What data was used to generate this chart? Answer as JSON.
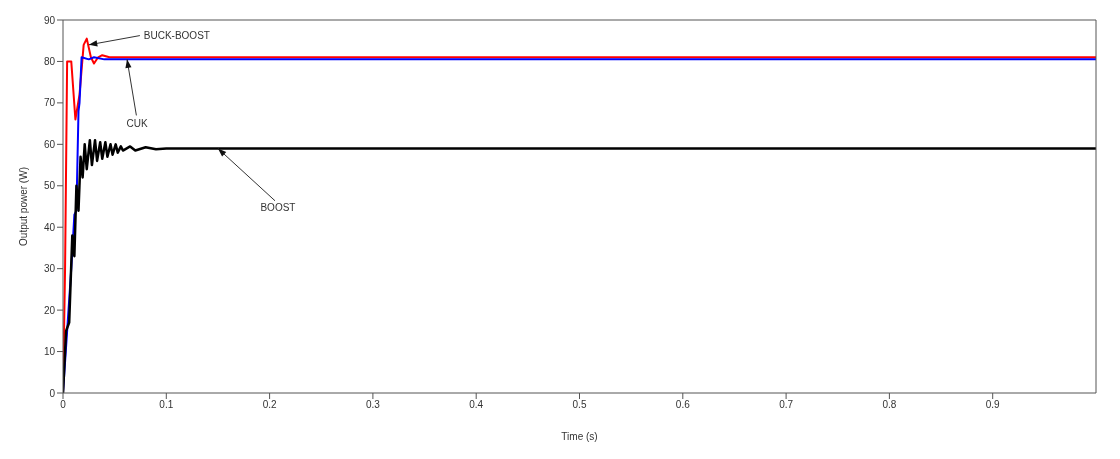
{
  "chart_data": {
    "type": "line",
    "xlabel": "Time (s)",
    "ylabel": "Output power (W)",
    "xlim": [
      0,
      1
    ],
    "xticks": [
      0,
      0.1,
      0.2,
      0.3,
      0.4,
      0.5,
      0.6,
      0.7,
      0.8,
      0.9
    ],
    "ylim": [
      0,
      90
    ],
    "yticks": [
      0,
      10,
      20,
      30,
      40,
      50,
      60,
      70,
      80,
      90
    ],
    "grid": false,
    "legend": false,
    "marker": "none",
    "line_style": "solid",
    "series": [
      {
        "color": "#ff0000",
        "x": [
          0,
          0.002,
          0.004,
          0.008,
          0.012,
          0.016,
          0.02,
          0.023,
          0.027,
          0.03,
          0.034,
          0.038,
          0.045,
          0.06,
          1
        ],
        "values": [
          0,
          30,
          80,
          80,
          66,
          72,
          84,
          85.5,
          81,
          79.5,
          81,
          81.5,
          81,
          81,
          81
        ]
      },
      {
        "color": "#0000ff",
        "x": [
          0,
          0.004,
          0.008,
          0.011,
          0.013,
          0.015,
          0.016,
          0.018,
          0.025,
          0.03,
          0.04,
          1
        ],
        "values": [
          0,
          15,
          30,
          43,
          44,
          68,
          70,
          81,
          80.5,
          81,
          80.5,
          80.5
        ]
      },
      {
        "color": "#000000",
        "x": [
          0,
          0.003,
          0.006,
          0.009,
          0.011,
          0.013,
          0.015,
          0.017,
          0.019,
          0.021,
          0.023,
          0.026,
          0.028,
          0.031,
          0.033,
          0.036,
          0.038,
          0.041,
          0.043,
          0.046,
          0.048,
          0.051,
          0.053,
          0.056,
          0.058,
          0.065,
          0.07,
          0.08,
          0.09,
          0.1,
          1
        ],
        "values": [
          0,
          15,
          17,
          38,
          33,
          50,
          44,
          57,
          52,
          60,
          54,
          61,
          55,
          61,
          56,
          60.5,
          56.5,
          60.5,
          57,
          60,
          57.5,
          60,
          58,
          59.5,
          58.5,
          59.5,
          58.5,
          59.3,
          58.8,
          59,
          59
        ]
      }
    ],
    "annotations": [
      {
        "text": "BUCK-BOOST",
        "x": 0.025,
        "y": 84
      },
      {
        "text": "CUK",
        "x": 0.062,
        "y": 80.5
      },
      {
        "text": "BOOST",
        "x": 0.15,
        "y": 59
      }
    ]
  }
}
